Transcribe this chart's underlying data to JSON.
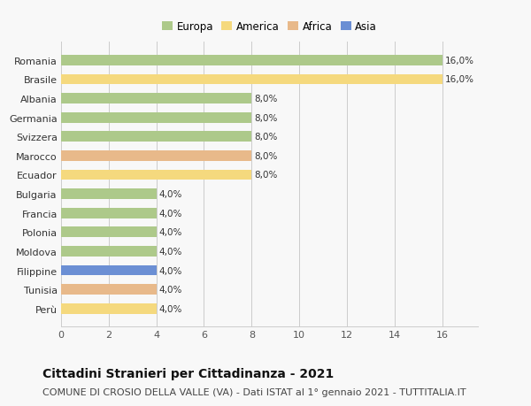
{
  "categories": [
    "Perù",
    "Tunisia",
    "Filippine",
    "Moldova",
    "Polonia",
    "Francia",
    "Bulgaria",
    "Ecuador",
    "Marocco",
    "Svizzera",
    "Germania",
    "Albania",
    "Brasile",
    "Romania"
  ],
  "values": [
    4.0,
    4.0,
    4.0,
    4.0,
    4.0,
    4.0,
    4.0,
    8.0,
    8.0,
    8.0,
    8.0,
    8.0,
    16.0,
    16.0
  ],
  "continents": [
    "America",
    "Africa",
    "Asia",
    "Europa",
    "Europa",
    "Europa",
    "Europa",
    "America",
    "Africa",
    "Europa",
    "Europa",
    "Europa",
    "America",
    "Europa"
  ],
  "continent_colors": {
    "Europa": "#adc98a",
    "America": "#f5d97e",
    "Africa": "#e8b98a",
    "Asia": "#6b8fd4"
  },
  "bar_labels": [
    "4,0%",
    "4,0%",
    "4,0%",
    "4,0%",
    "4,0%",
    "4,0%",
    "4,0%",
    "8,0%",
    "8,0%",
    "8,0%",
    "8,0%",
    "8,0%",
    "16,0%",
    "16,0%"
  ],
  "title": "Cittadini Stranieri per Cittadinanza - 2021",
  "subtitle": "COMUNE DI CROSIO DELLA VALLE (VA) - Dati ISTAT al 1° gennaio 2021 - TUTTITALIA.IT",
  "xlim": [
    0,
    17.5
  ],
  "xticks": [
    0,
    2,
    4,
    6,
    8,
    10,
    12,
    14,
    16
  ],
  "legend_order": [
    "Europa",
    "America",
    "Africa",
    "Asia"
  ],
  "bg_color": "#f8f8f8",
  "bar_height": 0.55,
  "title_fontsize": 10,
  "subtitle_fontsize": 8,
  "label_fontsize": 7.5,
  "tick_fontsize": 8,
  "legend_fontsize": 8.5
}
